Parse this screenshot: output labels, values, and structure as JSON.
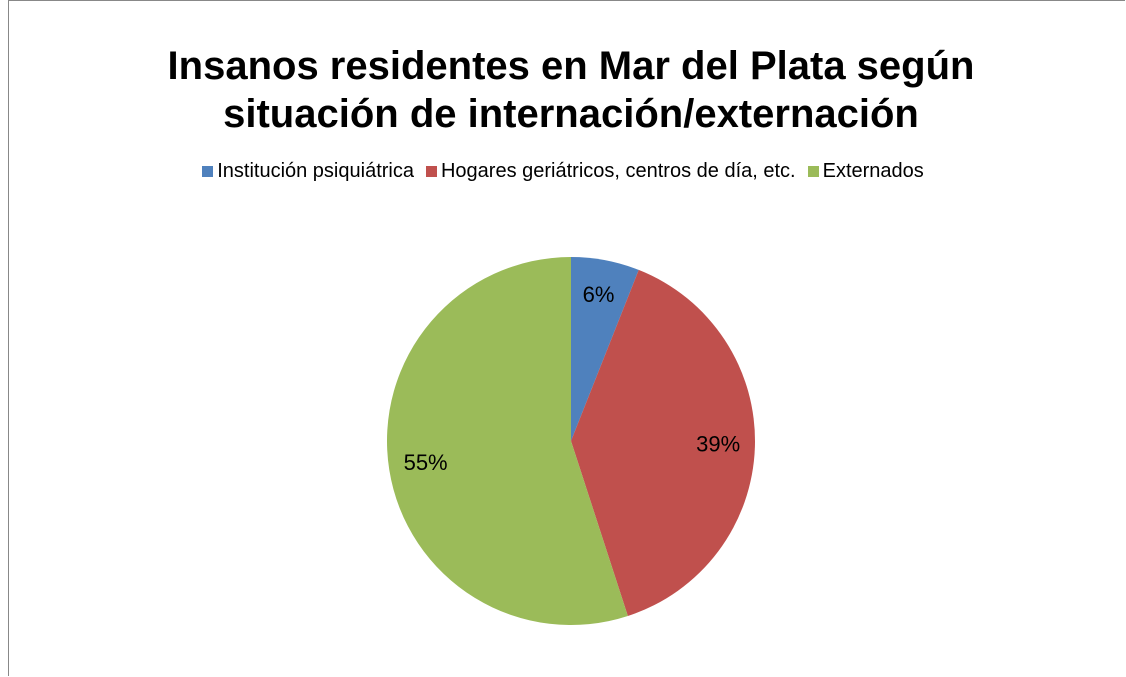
{
  "chart_data": {
    "type": "pie",
    "title": "Insanos residentes en Mar del Plata según situación de internación/externación",
    "categories": [
      "Institución psiquiátrica",
      "Hogares geriátricos, centros de día, etc.",
      "Externados"
    ],
    "values": [
      6,
      39,
      55
    ],
    "value_labels": [
      "6%",
      "39%",
      "55%"
    ],
    "colors": [
      "#4f81bd",
      "#c0504d",
      "#9bbb59"
    ],
    "legend": "top"
  }
}
